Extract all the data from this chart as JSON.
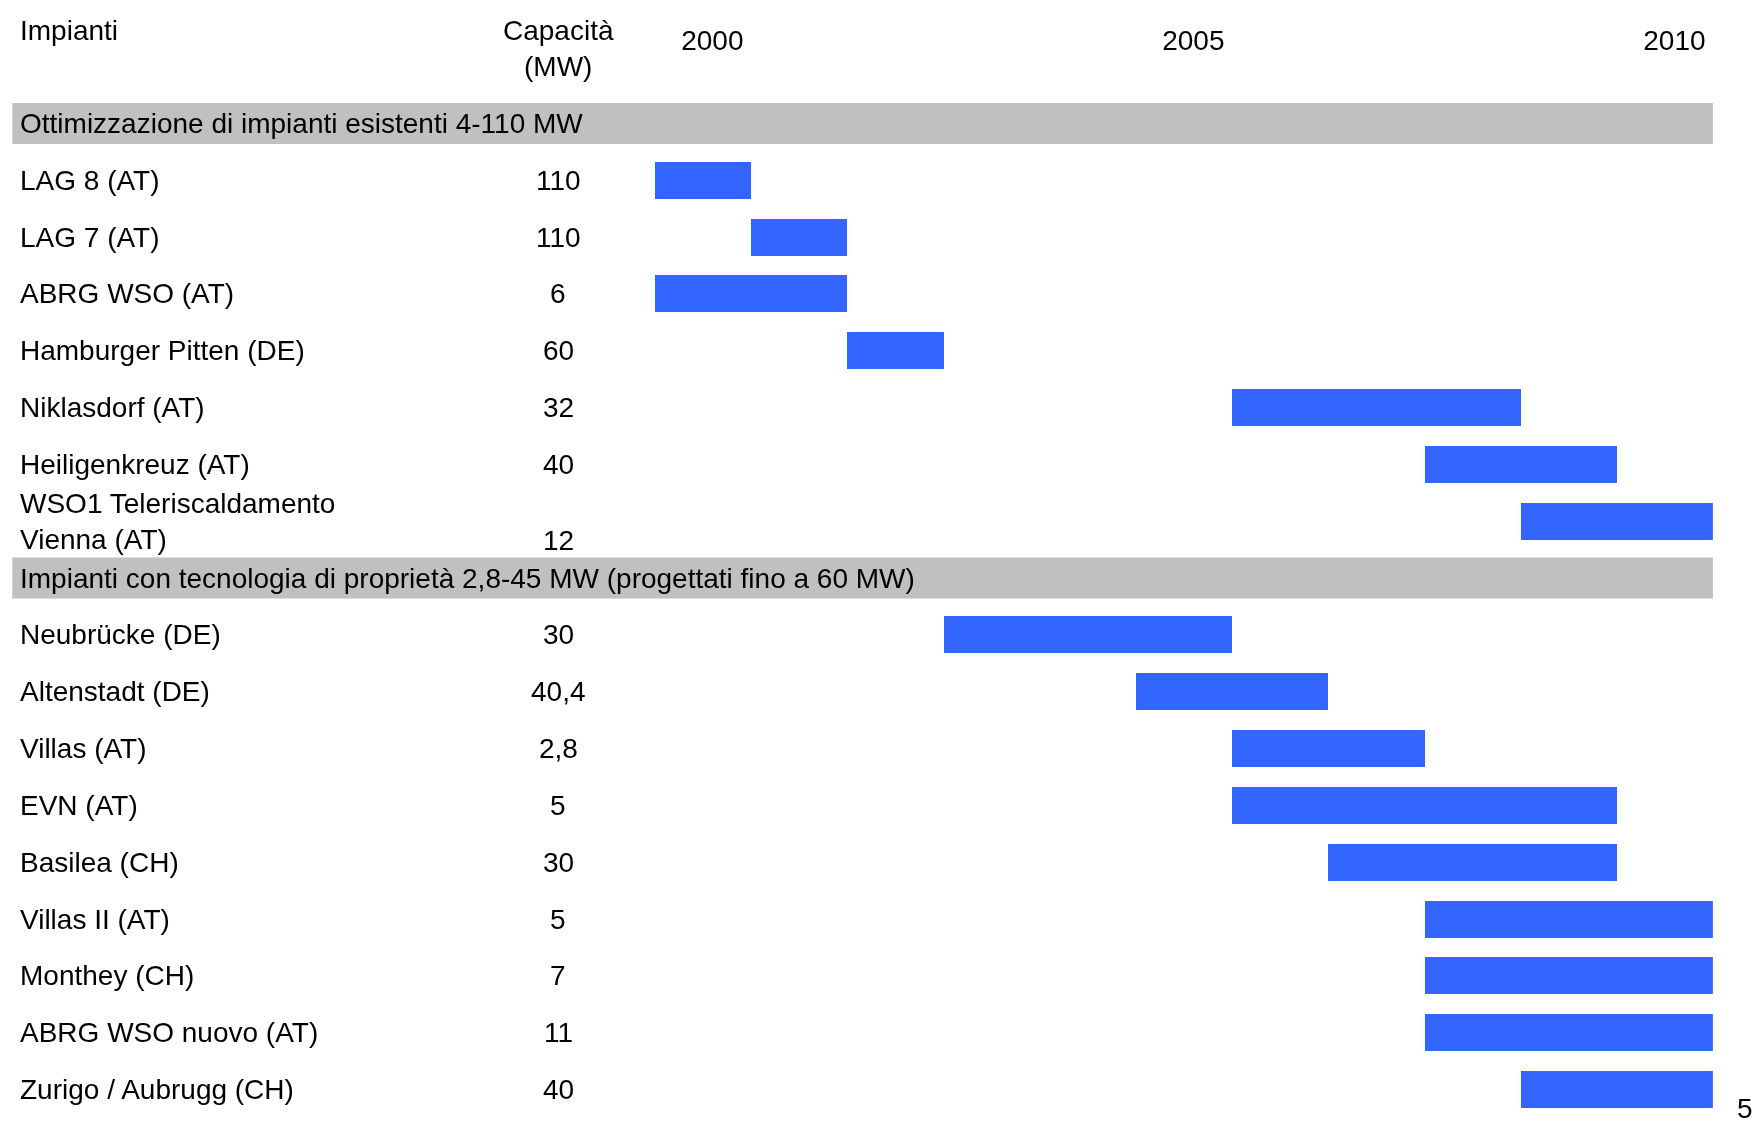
{
  "chart_data": {
    "type": "bar",
    "orientation": "horizontal",
    "ylabel": "Impianti",
    "categories": [
      "Ottimizzazione di impianti esistenti 4-110 MW",
      "LAG 8 (AT)",
      "LAG 7 (AT)",
      "ABRG WSO (AT)",
      "Hamburger Pitten (DE)",
      "Niklasdorf (AT)",
      "Heiligenkreuz (AT)",
      "WSO1 Teleriscaldamento\nVienna (AT)",
      "Impianti con tecnologia di proprietà 2,8-45 MW (progettati fino a 60 MW)",
      "Neubrücke (DE)",
      "Altenstadt (DE)",
      "Villas (AT)",
      "EVN (AT)",
      "Basilea (CH)",
      "Villas II (AT)",
      "Monthey (CH)",
      "ABRG WSO nuovo (AT)",
      "Zurigo / Aubrugg (CH)"
    ],
    "base": [
      null,
      1999.4,
      2000.4,
      1999.4,
      2001.4,
      2005.4,
      2007.4,
      2008.4,
      null,
      2002.4,
      2004.4,
      2005.4,
      2005.4,
      2006.4,
      2007.4,
      2007.4,
      2007.4,
      2008.4
    ],
    "values": [
      null,
      1,
      1,
      2,
      1,
      3,
      2,
      2,
      null,
      3,
      2,
      2,
      4,
      3,
      3,
      3,
      3,
      2
    ],
    "color": "#3366ff",
    "xlim": [
      1999.4,
      2010.4
    ],
    "xticks": [
      2000,
      2005,
      2010
    ],
    "grid": false,
    "legend": false,
    "bands": [
      {
        "axis": "y",
        "from": "Ottimizzazione di impianti esistenti 4-110 MW",
        "to": "Ottimizzazione di impianti esistenti 4-110 MW",
        "color": "#c0c0c0"
      },
      {
        "axis": "y",
        "from": "Impianti con tecnologia di proprietà 2,8-45 MW (progettati fino a 60 MW)",
        "to": "Impianti con tecnologia di proprietà 2,8-45 MW (progettati fino a 60 MW)",
        "color": "#c0c0c0"
      }
    ],
    "annotations": [
      "Capacità\n(MW)",
      "5",
      "110",
      "110",
      "6",
      "60",
      "32",
      "40",
      "12",
      "30",
      "40,4",
      "2,8",
      "5",
      "30",
      "5",
      "7",
      "11",
      "40"
    ]
  }
}
